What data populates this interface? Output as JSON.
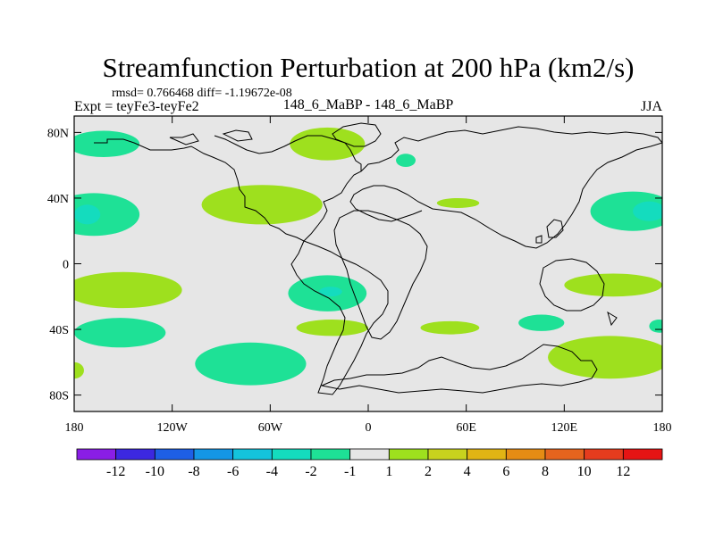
{
  "chart_data": {
    "type": "heatmap",
    "title": "Streamfunction Perturbation at 200 hPa (km2/s)",
    "stats_line": "rmsd= 0.766468 diff= -1.19672e-08",
    "left_label": "Expt = teyFe3-teyFe2",
    "center_label": "148_6_MaBP - 148_6_MaBP",
    "right_label": "JJA",
    "x_ticks": [
      {
        "value": -180,
        "label": "180"
      },
      {
        "value": -120,
        "label": "120W"
      },
      {
        "value": -60,
        "label": "60W"
      },
      {
        "value": 0,
        "label": "0"
      },
      {
        "value": 60,
        "label": "60E"
      },
      {
        "value": 120,
        "label": "120E"
      },
      {
        "value": 180,
        "label": "180"
      }
    ],
    "y_ticks": [
      {
        "value": 80,
        "label": "80N"
      },
      {
        "value": 40,
        "label": "40N"
      },
      {
        "value": 0,
        "label": "0"
      },
      {
        "value": -40,
        "label": "40S"
      },
      {
        "value": -80,
        "label": "80S"
      }
    ],
    "xlim": [
      -180,
      180
    ],
    "ylim": [
      -90,
      90
    ],
    "colorbar": {
      "labels": [
        "-12",
        "-10",
        "-8",
        "-6",
        "-4",
        "-2",
        "-1",
        "1",
        "2",
        "4",
        "6",
        "8",
        "10",
        "12"
      ],
      "colors": [
        "#8a1ee6",
        "#3c28e0",
        "#1e5fe6",
        "#1496e6",
        "#14c3dc",
        "#14dcbe",
        "#1ee196",
        "#e6e6e6",
        "#9ee01e",
        "#c8d21e",
        "#e1b414",
        "#e68c14",
        "#e6641e",
        "#e63c1e",
        "#e61414"
      ]
    },
    "regions": [
      {
        "name": "arctic-north-pacific-neg",
        "level": "-2 to -1",
        "color": "#1ee196",
        "lon": -162,
        "lat": 73,
        "rx": 22,
        "ry": 8
      },
      {
        "name": "arctic-atlantic-pos",
        "level": "1 to 2",
        "color": "#9ee01e",
        "lon": -25,
        "lat": 73,
        "rx": 23,
        "ry": 10
      },
      {
        "name": "asia-small-neg",
        "level": "-2 to -1",
        "color": "#1ee196",
        "lon": 23,
        "lat": 63,
        "rx": 6,
        "ry": 4
      },
      {
        "name": "north-america-pos",
        "level": "1 to 2",
        "color": "#9ee01e",
        "lon": -65,
        "lat": 36,
        "rx": 37,
        "ry": 12
      },
      {
        "name": "asia-band-pos",
        "level": "1 to 2",
        "color": "#9ee01e",
        "lon": 55,
        "lat": 37,
        "rx": 13,
        "ry": 3
      },
      {
        "name": "north-pacific-west-neg",
        "level": "-2 to -1",
        "color": "#1ee196",
        "lon": -168,
        "lat": 30,
        "rx": 28,
        "ry": 13
      },
      {
        "name": "north-pacific-west-core",
        "level": "-4 to -2",
        "color": "#14dcbe",
        "lon": -172,
        "lat": 30,
        "rx": 8,
        "ry": 6
      },
      {
        "name": "north-pacific-east-neg",
        "level": "-2 to -1",
        "color": "#1ee196",
        "lon": 162,
        "lat": 32,
        "rx": 26,
        "ry": 12
      },
      {
        "name": "north-pacific-east-core",
        "level": "-4 to -2",
        "color": "#14dcbe",
        "lon": 172,
        "lat": 32,
        "rx": 10,
        "ry": 6
      },
      {
        "name": "south-pacific-pos",
        "level": "1 to 2",
        "color": "#9ee01e",
        "lon": -150,
        "lat": -16,
        "rx": 36,
        "ry": 11
      },
      {
        "name": "south-atlantic-neg",
        "level": "-2 to -1",
        "color": "#1ee196",
        "lon": -25,
        "lat": -18,
        "rx": 24,
        "ry": 11
      },
      {
        "name": "south-atlantic-core",
        "level": "-4 to -2",
        "color": "#14dcbe",
        "lon": -23,
        "lat": -17,
        "rx": 7,
        "ry": 3
      },
      {
        "name": "indian-ocean-pos-east",
        "level": "1 to 2",
        "color": "#9ee01e",
        "lon": 150,
        "lat": -13,
        "rx": 30,
        "ry": 7
      },
      {
        "name": "south-40-neg-west",
        "level": "-2 to -1",
        "color": "#1ee196",
        "lon": -152,
        "lat": -42,
        "rx": 28,
        "ry": 9
      },
      {
        "name": "south-40-pos-atlantic",
        "level": "1 to 2",
        "color": "#9ee01e",
        "lon": -22,
        "lat": -39,
        "rx": 22,
        "ry": 5
      },
      {
        "name": "south-40-pos-indian",
        "level": "1 to 2",
        "color": "#9ee01e",
        "lon": 50,
        "lat": -39,
        "rx": 18,
        "ry": 4
      },
      {
        "name": "south-40-neg-east",
        "level": "-2 to -1",
        "color": "#1ee196",
        "lon": 106,
        "lat": -36,
        "rx": 14,
        "ry": 5
      },
      {
        "name": "south-40-neg-edge",
        "level": "-2 to -1",
        "color": "#1ee196",
        "lon": 178,
        "lat": -38,
        "rx": 6,
        "ry": 4
      },
      {
        "name": "south-60-neg",
        "level": "-2 to -1",
        "color": "#1ee196",
        "lon": -72,
        "lat": -61,
        "rx": 34,
        "ry": 13
      },
      {
        "name": "south-60-pos-east",
        "level": "1 to 2",
        "color": "#9ee01e",
        "lon": 148,
        "lat": -57,
        "rx": 38,
        "ry": 13
      },
      {
        "name": "south-60-pos-edge",
        "level": "1 to 2",
        "color": "#9ee01e",
        "lon": -180,
        "lat": -65,
        "rx": 6,
        "ry": 5
      }
    ]
  }
}
